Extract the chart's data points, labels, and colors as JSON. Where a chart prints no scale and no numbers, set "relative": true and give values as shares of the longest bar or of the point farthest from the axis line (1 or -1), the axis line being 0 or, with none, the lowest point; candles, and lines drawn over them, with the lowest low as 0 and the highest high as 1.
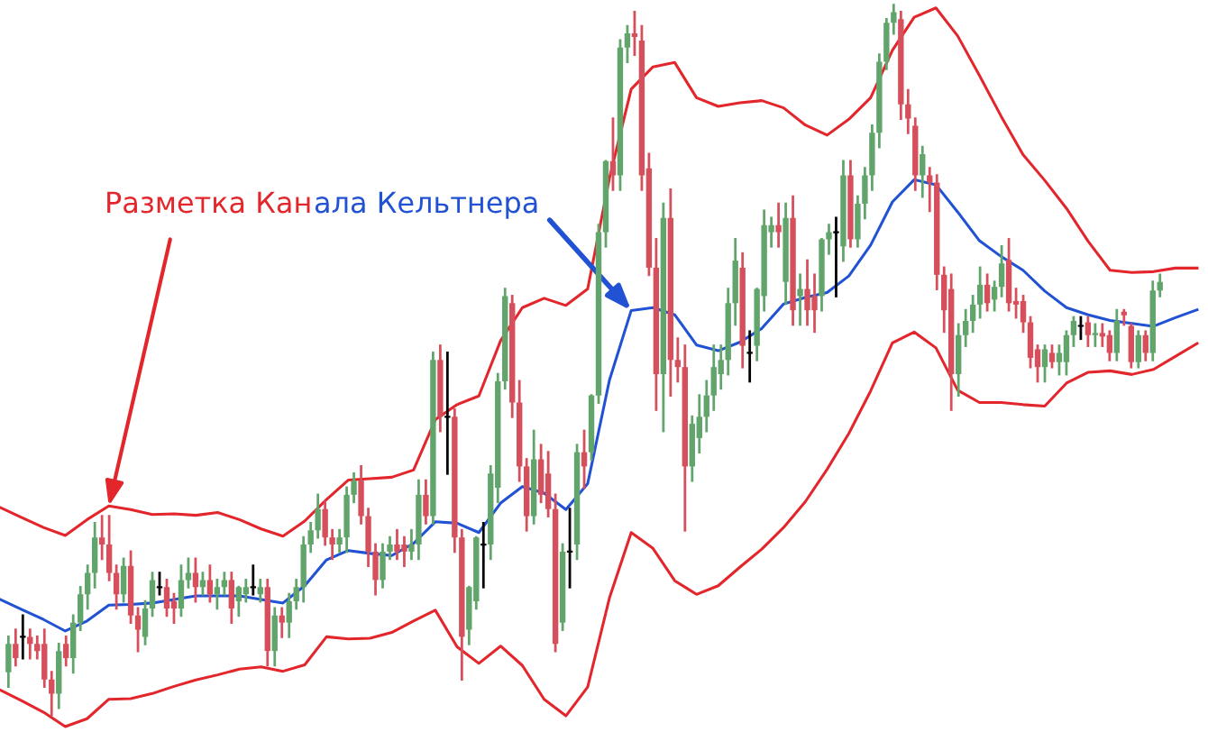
{
  "chart_data": [
    {
      "type": "candlestick",
      "relative": true,
      "categories": [
        null,
        null,
        null,
        null,
        null,
        null,
        null,
        null,
        null,
        null,
        null,
        null,
        null,
        null,
        null,
        null,
        null,
        null,
        null,
        null,
        null,
        null,
        null,
        null,
        null,
        null,
        null,
        null,
        null,
        null,
        null,
        null,
        null,
        null,
        null,
        null,
        null,
        null,
        null,
        null,
        null,
        null,
        null,
        null,
        null,
        null,
        null,
        null,
        null,
        null,
        null,
        null,
        null,
        null,
        null,
        null,
        null,
        null,
        null,
        null,
        null,
        null,
        null,
        null,
        null,
        null,
        null,
        null,
        null,
        null,
        null,
        null,
        null,
        null,
        null,
        null,
        null,
        null,
        null,
        null,
        null,
        null,
        null,
        null,
        null,
        null,
        null,
        null,
        null,
        null,
        null,
        null,
        null,
        null,
        null,
        null,
        null,
        null,
        null,
        null,
        null,
        null,
        null,
        null,
        null,
        null,
        null,
        null,
        null,
        null,
        null,
        null,
        null,
        null,
        null,
        null,
        null,
        null,
        null,
        null,
        null,
        null,
        null,
        null,
        null,
        null,
        null,
        null,
        null,
        null,
        null,
        null,
        null,
        null,
        null,
        null,
        null,
        null,
        null,
        null,
        null,
        null,
        null,
        null,
        null,
        null,
        null,
        null,
        null,
        null,
        null,
        null,
        null,
        null,
        null,
        null,
        null,
        null,
        null,
        null,
        null
      ],
      "ohlc": [
        [
          0.06,
          0.11,
          0.04,
          0.1
        ],
        [
          0.1,
          0.12,
          0.07,
          0.08
        ],
        [
          0.11,
          0.14,
          0.08,
          0.11
        ],
        [
          0.11,
          0.12,
          0.08,
          0.1
        ],
        [
          0.1,
          0.11,
          0.08,
          0.09
        ],
        [
          0.1,
          0.12,
          0.04,
          0.05
        ],
        [
          0.05,
          0.06,
          0.0,
          0.03
        ],
        [
          0.03,
          0.1,
          0.01,
          0.09
        ],
        [
          0.1,
          0.11,
          0.07,
          0.08
        ],
        [
          0.08,
          0.14,
          0.06,
          0.13
        ],
        [
          0.13,
          0.18,
          0.12,
          0.17
        ],
        [
          0.17,
          0.21,
          0.15,
          0.2
        ],
        [
          0.2,
          0.27,
          0.18,
          0.25
        ],
        [
          0.25,
          0.28,
          0.22,
          0.24
        ],
        [
          0.24,
          0.28,
          0.19,
          0.2
        ],
        [
          0.2,
          0.21,
          0.15,
          0.17
        ],
        [
          0.17,
          0.22,
          0.16,
          0.21
        ],
        [
          0.21,
          0.23,
          0.13,
          0.14
        ],
        [
          0.14,
          0.15,
          0.09,
          0.12
        ],
        [
          0.11,
          0.16,
          0.1,
          0.15
        ],
        [
          0.15,
          0.2,
          0.14,
          0.19
        ],
        [
          0.18,
          0.2,
          0.17,
          0.18
        ],
        [
          0.18,
          0.19,
          0.14,
          0.15
        ],
        [
          0.16,
          0.17,
          0.13,
          0.15
        ],
        [
          0.15,
          0.21,
          0.14,
          0.19
        ],
        [
          0.19,
          0.22,
          0.18,
          0.2
        ],
        [
          0.2,
          0.22,
          0.16,
          0.18
        ],
        [
          0.18,
          0.2,
          0.17,
          0.19
        ],
        [
          0.19,
          0.21,
          0.16,
          0.17
        ],
        [
          0.17,
          0.19,
          0.15,
          0.18
        ],
        [
          0.18,
          0.2,
          0.17,
          0.19
        ],
        [
          0.19,
          0.2,
          0.13,
          0.15
        ],
        [
          0.16,
          0.18,
          0.14,
          0.18
        ],
        [
          0.17,
          0.19,
          0.16,
          0.18
        ],
        [
          0.18,
          0.21,
          0.17,
          0.18
        ],
        [
          0.17,
          0.19,
          0.16,
          0.18
        ],
        [
          0.18,
          0.19,
          0.07,
          0.09
        ],
        [
          0.09,
          0.15,
          0.07,
          0.14
        ],
        [
          0.14,
          0.15,
          0.11,
          0.13
        ],
        [
          0.13,
          0.17,
          0.11,
          0.16
        ],
        [
          0.16,
          0.19,
          0.15,
          0.18
        ],
        [
          0.18,
          0.25,
          0.16,
          0.24
        ],
        [
          0.24,
          0.27,
          0.23,
          0.26
        ],
        [
          0.26,
          0.31,
          0.25,
          0.29
        ],
        [
          0.29,
          0.3,
          0.24,
          0.25
        ],
        [
          0.25,
          0.26,
          0.22,
          0.24
        ],
        [
          0.24,
          0.26,
          0.23,
          0.25
        ],
        [
          0.25,
          0.32,
          0.23,
          0.31
        ],
        [
          0.31,
          0.34,
          0.3,
          0.33
        ],
        [
          0.33,
          0.35,
          0.27,
          0.28
        ],
        [
          0.28,
          0.29,
          0.21,
          0.23
        ],
        [
          0.23,
          0.24,
          0.17,
          0.19
        ],
        [
          0.19,
          0.24,
          0.18,
          0.23
        ],
        [
          0.23,
          0.25,
          0.22,
          0.24
        ],
        [
          0.24,
          0.26,
          0.22,
          0.23
        ],
        [
          0.24,
          0.25,
          0.21,
          0.23
        ],
        [
          0.23,
          0.26,
          0.22,
          0.24
        ],
        [
          0.24,
          0.33,
          0.22,
          0.31
        ],
        [
          0.31,
          0.33,
          0.27,
          0.28
        ],
        [
          0.28,
          0.51,
          0.27,
          0.5
        ],
        [
          0.5,
          0.52,
          0.4,
          0.42
        ],
        [
          0.42,
          0.51,
          0.34,
          0.42
        ],
        [
          0.42,
          0.43,
          0.23,
          0.25
        ],
        [
          0.25,
          0.26,
          0.05,
          0.11
        ],
        [
          0.12,
          0.18,
          0.1,
          0.18
        ],
        [
          0.16,
          0.25,
          0.15,
          0.25
        ],
        [
          0.24,
          0.27,
          0.18,
          0.24
        ],
        [
          0.24,
          0.35,
          0.22,
          0.34
        ],
        [
          0.32,
          0.48,
          0.3,
          0.47
        ],
        [
          0.47,
          0.6,
          0.46,
          0.59
        ],
        [
          0.58,
          0.59,
          0.42,
          0.44
        ],
        [
          0.44,
          0.47,
          0.33,
          0.35
        ],
        [
          0.35,
          0.36,
          0.26,
          0.28
        ],
        [
          0.28,
          0.4,
          0.27,
          0.36
        ],
        [
          0.36,
          0.38,
          0.3,
          0.31
        ],
        [
          0.34,
          0.37,
          0.28,
          0.29
        ],
        [
          0.29,
          0.31,
          0.09,
          0.1
        ],
        [
          0.13,
          0.24,
          0.12,
          0.23
        ],
        [
          0.23,
          0.29,
          0.18,
          0.23
        ],
        [
          0.24,
          0.38,
          0.22,
          0.37
        ],
        [
          0.37,
          0.4,
          0.32,
          0.35
        ],
        [
          0.37,
          0.45,
          0.36,
          0.45
        ],
        [
          0.45,
          0.69,
          0.44,
          0.68
        ],
        [
          0.68,
          0.78,
          0.66,
          0.78
        ],
        [
          0.78,
          0.84,
          0.74,
          0.76
        ],
        [
          0.76,
          0.95,
          0.74,
          0.94
        ],
        [
          0.94,
          0.97,
          0.92,
          0.96
        ],
        [
          0.96,
          0.99,
          0.93,
          0.955
        ],
        [
          0.95,
          0.97,
          0.74,
          0.76
        ],
        [
          0.77,
          0.79,
          0.62,
          0.63
        ],
        [
          0.63,
          0.67,
          0.43,
          0.48
        ],
        [
          0.48,
          0.72,
          0.4,
          0.7
        ],
        [
          0.7,
          0.74,
          0.45,
          0.5
        ],
        [
          0.5,
          0.53,
          0.47,
          0.49
        ],
        [
          0.49,
          0.52,
          0.26,
          0.35
        ],
        [
          0.35,
          0.42,
          0.33,
          0.41
        ],
        [
          0.39,
          0.45,
          0.37,
          0.42
        ],
        [
          0.42,
          0.47,
          0.4,
          0.45
        ],
        [
          0.45,
          0.52,
          0.43,
          0.49
        ],
        [
          0.48,
          0.52,
          0.46,
          0.5
        ],
        [
          0.5,
          0.6,
          0.48,
          0.58
        ],
        [
          0.58,
          0.67,
          0.55,
          0.64
        ],
        [
          0.63,
          0.65,
          0.49,
          0.52
        ],
        [
          0.51,
          0.54,
          0.47,
          0.51
        ],
        [
          0.52,
          0.6,
          0.5,
          0.6
        ],
        [
          0.59,
          0.71,
          0.57,
          0.69
        ],
        [
          0.68,
          0.7,
          0.66,
          0.69
        ],
        [
          0.69,
          0.72,
          0.66,
          0.68
        ],
        [
          0.61,
          0.72,
          0.58,
          0.7
        ],
        [
          0.7,
          0.73,
          0.55,
          0.57
        ],
        [
          0.59,
          0.62,
          0.55,
          0.6
        ],
        [
          0.6,
          0.64,
          0.55,
          0.57
        ],
        [
          0.59,
          0.62,
          0.54,
          0.57
        ],
        [
          0.59,
          0.67,
          0.57,
          0.67
        ],
        [
          0.67,
          0.69,
          0.65,
          0.68
        ],
        [
          0.68,
          0.7,
          0.59,
          0.68
        ],
        [
          0.66,
          0.78,
          0.64,
          0.76
        ],
        [
          0.76,
          0.78,
          0.66,
          0.67
        ],
        [
          0.67,
          0.73,
          0.66,
          0.72
        ],
        [
          0.72,
          0.77,
          0.7,
          0.76
        ],
        [
          0.76,
          0.83,
          0.74,
          0.82
        ],
        [
          0.82,
          0.93,
          0.8,
          0.92
        ],
        [
          0.92,
          0.98,
          0.91,
          0.975
        ],
        [
          0.975,
          1.0,
          0.96,
          0.99
        ],
        [
          0.98,
          0.99,
          0.84,
          0.86
        ],
        [
          0.86,
          0.88,
          0.82,
          0.84
        ],
        [
          0.83,
          0.84,
          0.74,
          0.76
        ],
        [
          0.76,
          0.8,
          0.73,
          0.79
        ],
        [
          0.76,
          0.77,
          0.71,
          0.75
        ],
        [
          0.75,
          0.76,
          0.6,
          0.62
        ],
        [
          0.62,
          0.63,
          0.54,
          0.57
        ],
        [
          0.6,
          0.62,
          0.43,
          0.48
        ],
        [
          0.48,
          0.55,
          0.45,
          0.535
        ],
        [
          0.535,
          0.57,
          0.52,
          0.555
        ],
        [
          0.555,
          0.59,
          0.54,
          0.578
        ],
        [
          0.578,
          0.63,
          0.56,
          0.606
        ],
        [
          0.606,
          0.62,
          0.57,
          0.58
        ],
        [
          0.585,
          0.61,
          0.57,
          0.603
        ],
        [
          0.603,
          0.66,
          0.59,
          0.636
        ],
        [
          0.641,
          0.67,
          0.57,
          0.58
        ],
        [
          0.583,
          0.6,
          0.56,
          0.578
        ],
        [
          0.583,
          0.59,
          0.54,
          0.553
        ],
        [
          0.553,
          0.56,
          0.49,
          0.503
        ],
        [
          0.515,
          0.52,
          0.47,
          0.49
        ],
        [
          0.49,
          0.52,
          0.47,
          0.515
        ],
        [
          0.51,
          0.52,
          0.49,
          0.497
        ],
        [
          0.497,
          0.52,
          0.48,
          0.51
        ],
        [
          0.497,
          0.54,
          0.48,
          0.535
        ],
        [
          0.535,
          0.56,
          0.52,
          0.555
        ],
        [
          0.548,
          0.56,
          0.53,
          0.548
        ],
        [
          0.553,
          0.56,
          0.52,
          0.535
        ],
        [
          0.535,
          0.55,
          0.52,
          0.538
        ],
        [
          0.538,
          0.55,
          0.52,
          0.533
        ],
        [
          0.535,
          0.54,
          0.5,
          0.51
        ],
        [
          0.51,
          0.57,
          0.5,
          0.555
        ],
        [
          0.568,
          0.57,
          0.55,
          0.563
        ],
        [
          0.548,
          0.55,
          0.49,
          0.497
        ],
        [
          0.497,
          0.54,
          0.49,
          0.535
        ],
        [
          0.535,
          0.54,
          0.5,
          0.51
        ],
        [
          0.51,
          0.61,
          0.5,
          0.598
        ],
        [
          0.598,
          0.62,
          0.59,
          0.61
        ]
      ]
    },
    {
      "type": "line",
      "relative": true,
      "annotations": [
        "Разметка Кан",
        "ала Кельтнера"
      ],
      "categories": [
        null,
        null,
        null,
        null,
        null,
        null,
        null,
        null,
        null,
        null,
        null,
        null,
        null,
        null,
        null,
        null,
        null,
        null,
        null,
        null,
        null,
        null,
        null,
        null,
        null,
        null,
        null,
        null,
        null,
        null,
        null,
        null,
        null,
        null,
        null,
        null,
        null,
        null,
        null,
        null,
        null,
        null,
        null,
        null,
        null,
        null,
        null,
        null,
        null,
        null,
        null,
        null,
        null,
        null,
        null,
        null
      ],
      "series": [
        {
          "color": "#e3262b",
          "values": [
            0.305,
            0.291,
            0.277,
            0.266,
            0.288,
            0.307,
            0.302,
            0.295,
            0.296,
            0.294,
            0.298,
            0.288,
            0.275,
            0.265,
            0.286,
            0.316,
            0.343,
            0.345,
            0.347,
            0.357,
            0.427,
            0.448,
            0.46,
            0.537,
            0.583,
            0.596,
            0.586,
            0.609,
            0.763,
            0.887,
            0.918,
            0.924,
            0.875,
            0.863,
            0.868,
            0.871,
            0.861,
            0.837,
            0.823,
            0.845,
            0.875,
            0.941,
            0.987,
            1.0,
            0.961,
            0.906,
            0.849,
            0.796,
            0.76,
            0.721,
            0.675,
            0.635,
            0.632,
            0.633,
            0.638,
            0.638
          ]
        },
        {
          "color": "#2152d3",
          "values": [
            0.177,
            0.163,
            0.149,
            0.133,
            0.147,
            0.169,
            0.17,
            0.172,
            0.177,
            0.182,
            0.182,
            0.182,
            0.177,
            0.172,
            0.196,
            0.232,
            0.245,
            0.241,
            0.238,
            0.255,
            0.285,
            0.283,
            0.27,
            0.311,
            0.334,
            0.325,
            0.302,
            0.338,
            0.482,
            0.579,
            0.583,
            0.573,
            0.531,
            0.523,
            0.535,
            0.554,
            0.588,
            0.597,
            0.604,
            0.627,
            0.67,
            0.73,
            0.761,
            0.754,
            0.716,
            0.676,
            0.654,
            0.635,
            0.606,
            0.583,
            0.573,
            0.565,
            0.561,
            0.557,
            0.569,
            0.58
          ]
        },
        {
          "color": "#e3262b",
          "values": [
            0.051,
            0.036,
            0.02,
            0.0,
            0.011,
            0.038,
            0.039,
            0.046,
            0.056,
            0.065,
            0.072,
            0.08,
            0.083,
            0.077,
            0.086,
            0.125,
            0.122,
            0.123,
            0.131,
            0.147,
            0.162,
            0.111,
            0.088,
            0.112,
            0.085,
            0.038,
            0.015,
            0.055,
            0.179,
            0.27,
            0.248,
            0.203,
            0.184,
            0.196,
            0.222,
            0.247,
            0.277,
            0.313,
            0.358,
            0.408,
            0.467,
            0.534,
            0.549,
            0.527,
            0.468,
            0.451,
            0.451,
            0.448,
            0.446,
            0.478,
            0.493,
            0.495,
            0.49,
            0.497,
            0.515,
            0.533
          ]
        }
      ]
    }
  ]
}
